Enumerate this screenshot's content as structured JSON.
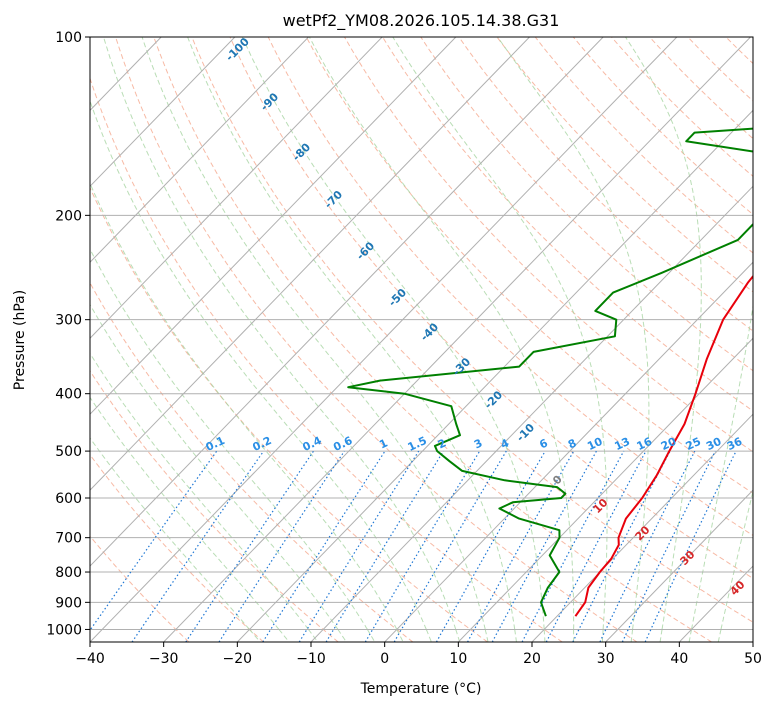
{
  "chart_data": {
    "type": "line",
    "title": "wetPf2_YM08.2026.105.14.38.G31",
    "xlabel": "Temperature (°C)",
    "ylabel": "Pressure (hPa)",
    "xlim": [
      -40,
      50
    ],
    "ylim": [
      1050,
      100
    ],
    "y_scale": "log",
    "grid": true,
    "x_ticks": [
      "−40",
      "−30",
      "−20",
      "−10",
      "0",
      "10",
      "20",
      "30",
      "40",
      "50"
    ],
    "x_tick_values": [
      -40,
      -30,
      -20,
      -10,
      0,
      10,
      20,
      30,
      40,
      50
    ],
    "y_ticks": [
      "100",
      "200",
      "300",
      "400",
      "500",
      "600",
      "700",
      "800",
      "900",
      "1000"
    ],
    "y_tick_values": [
      100,
      200,
      300,
      400,
      500,
      600,
      700,
      800,
      900,
      1000
    ],
    "series": [
      {
        "type": "temperature",
        "color": "#e8000b",
        "points": [
          [
            950,
            22.5
          ],
          [
            900,
            22
          ],
          [
            850,
            20.5
          ],
          [
            800,
            20
          ],
          [
            760,
            19.8
          ],
          [
            720,
            19
          ],
          [
            700,
            18
          ],
          [
            650,
            16.5
          ],
          [
            600,
            16
          ],
          [
            550,
            15
          ],
          [
            500,
            13.5
          ],
          [
            450,
            12
          ],
          [
            400,
            9.5
          ],
          [
            350,
            6.5
          ],
          [
            300,
            3.5
          ],
          [
            260,
            2
          ],
          [
            220,
            1
          ],
          [
            200,
            1.5
          ],
          [
            180,
            3
          ],
          [
            160,
            6
          ],
          [
            140,
            8
          ],
          [
            120,
            9
          ],
          [
            100,
            11
          ]
        ]
      },
      {
        "type": "dewpoint",
        "color": "#008000",
        "points": [
          [
            950,
            18.5
          ],
          [
            900,
            16
          ],
          [
            850,
            15
          ],
          [
            800,
            14.5
          ],
          [
            750,
            11
          ],
          [
            700,
            10
          ],
          [
            680,
            9
          ],
          [
            650,
            2
          ],
          [
            625,
            -2
          ],
          [
            610,
            -1
          ],
          [
            600,
            5
          ],
          [
            590,
            5
          ],
          [
            575,
            3
          ],
          [
            560,
            -5
          ],
          [
            540,
            -12
          ],
          [
            520,
            -15
          ],
          [
            500,
            -18
          ],
          [
            490,
            -19
          ],
          [
            470,
            -17
          ],
          [
            450,
            -19
          ],
          [
            420,
            -22
          ],
          [
            400,
            -30
          ],
          [
            390,
            -38.5
          ],
          [
            380,
            -35
          ],
          [
            360,
            -18
          ],
          [
            340,
            -18
          ],
          [
            320,
            -9
          ],
          [
            300,
            -11
          ],
          [
            290,
            -15
          ],
          [
            270,
            -15
          ],
          [
            250,
            -11
          ],
          [
            220,
            -5
          ],
          [
            200,
            -5
          ],
          [
            185,
            -4
          ],
          [
            175,
            -4
          ],
          [
            160,
            -8
          ],
          [
            150,
            -25
          ],
          [
            145,
            -25
          ],
          [
            140,
            -8
          ],
          [
            130,
            -2
          ],
          [
            120,
            -3
          ],
          [
            110,
            -6
          ],
          [
            100,
            -3
          ]
        ]
      }
    ],
    "dry_adiabats_label": "",
    "isotherm_spacing_c": 10,
    "mixing_ratio_labels": [
      "0.1",
      "0.2",
      "0.4",
      "0.6",
      "1",
      "1.5",
      "2",
      "3",
      "4",
      "6",
      "8",
      "10",
      "13",
      "16",
      "20",
      "25",
      "30",
      "36"
    ],
    "mixing_ratio_values": [
      0.1,
      0.2,
      0.4,
      0.6,
      1,
      1.5,
      2,
      3,
      4,
      6,
      8,
      10,
      13,
      16,
      20,
      25,
      30,
      36
    ],
    "height_labels_blue": [
      "-100",
      "-90",
      "-80",
      "-70",
      "-60",
      "-50",
      "-40",
      "-30",
      "-20",
      "-10"
    ],
    "height_labels_red": [
      "0",
      "10",
      "20",
      "30",
      "40"
    ],
    "colors": {
      "isotherm": "#b0b0b0",
      "isobar": "#b0b0b0",
      "dry_adiabat": "#f5a98f",
      "moist_adiabat": "#a8d5a2",
      "mixing_ratio": "#1f77d4",
      "blue_label": "#1f77b4",
      "light_blue_label": "#2a8fe6",
      "red_label": "#d62728",
      "gray_label": "#808080"
    }
  }
}
